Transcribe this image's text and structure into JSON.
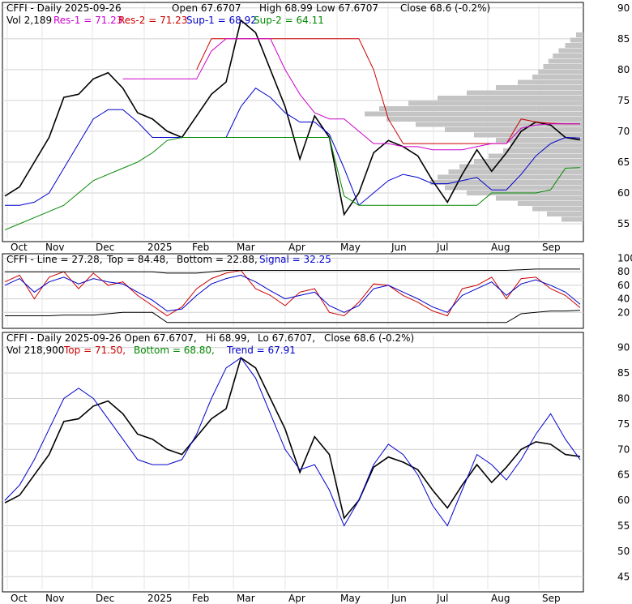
{
  "chart_data": [
    {
      "type": "line",
      "title": "CFFI - Daily 2025-09-26",
      "header": {
        "title": "CFFI - Daily 2025-09-26",
        "open": "Open 67.6707",
        "high": "High 68.99",
        "low": "Low 67.6707",
        "close": "Close 68.6 (-0.2%)",
        "vol": "Vol 2,189",
        "res1": "Res-1 = 71.23",
        "res2": "Res-2 = 71.23",
        "sup1": "Sup-1 = 68.92",
        "sup2": "Sup-2 = 64.11"
      },
      "x_ticks": [
        "Oct",
        "Nov",
        "Dec",
        "2025",
        "Feb",
        "Mar",
        "Apr",
        "May",
        "Jun",
        "Jul",
        "Aug",
        "Sep"
      ],
      "y_ticks": [
        55,
        60,
        65,
        70,
        75,
        80,
        85,
        90
      ],
      "ylim": [
        52.5,
        90.5
      ],
      "series": [
        {
          "name": "Close",
          "color": "#000000",
          "values": [
            59.5,
            61.0,
            65.0,
            69.0,
            75.5,
            76.0,
            78.5,
            79.5,
            77.0,
            73.0,
            72.0,
            70.0,
            69.0,
            72.5,
            76.0,
            78.0,
            88.0,
            86.0,
            80.0,
            74.0,
            65.5,
            72.5,
            69.0,
            56.5,
            60.0,
            66.5,
            68.5,
            67.5,
            66.0,
            62.0,
            58.5,
            63.0,
            67.0,
            63.5,
            66.5,
            70.0,
            71.5,
            71.0,
            69.0,
            68.6
          ]
        },
        {
          "name": "Res-2",
          "color": "#cc0000",
          "values": [
            null,
            null,
            null,
            null,
            null,
            null,
            null,
            null,
            null,
            null,
            null,
            null,
            null,
            80.0,
            85.0,
            85.0,
            85.0,
            85.0,
            85.0,
            85.0,
            85.0,
            85.0,
            85.0,
            85.0,
            85.0,
            80.0,
            72.0,
            68.0,
            68.0,
            68.0,
            68.0,
            68.0,
            68.0,
            68.0,
            68.0,
            72.0,
            71.5,
            71.3,
            71.2,
            71.2
          ]
        },
        {
          "name": "Res-1",
          "color": "#cc00cc",
          "values": [
            null,
            null,
            null,
            null,
            null,
            null,
            null,
            null,
            78.5,
            78.5,
            78.5,
            78.5,
            78.5,
            78.5,
            83.0,
            85.0,
            85.0,
            85.0,
            85.0,
            80.0,
            76.0,
            73.0,
            72.0,
            72.0,
            70.0,
            68.0,
            68.0,
            67.5,
            67.5,
            67.0,
            67.0,
            67.0,
            67.5,
            68.0,
            68.0,
            70.5,
            71.0,
            71.2,
            71.2,
            71.2
          ]
        },
        {
          "name": "Sup-1",
          "color": "#0000cc",
          "values": [
            58.0,
            58.0,
            58.5,
            60.0,
            64.0,
            68.0,
            72.0,
            73.5,
            73.5,
            71.5,
            69.0,
            69.0,
            69.0,
            69.0,
            69.0,
            69.0,
            74.0,
            77.0,
            75.5,
            73.0,
            71.5,
            71.5,
            69.5,
            64.0,
            58.0,
            60.0,
            62.0,
            63.0,
            62.5,
            61.5,
            61.5,
            62.0,
            62.5,
            60.5,
            60.5,
            63.0,
            66.0,
            68.0,
            69.0,
            68.9
          ]
        },
        {
          "name": "Sup-2",
          "color": "#008800",
          "values": [
            54.0,
            55.0,
            56.0,
            57.0,
            58.0,
            60.0,
            62.0,
            63.0,
            64.0,
            65.0,
            66.5,
            68.5,
            69.0,
            69.0,
            69.0,
            69.0,
            69.0,
            69.0,
            69.0,
            69.0,
            69.0,
            69.0,
            69.0,
            59.5,
            58.0,
            58.0,
            58.0,
            58.0,
            58.0,
            58.0,
            58.0,
            58.0,
            58.0,
            60.0,
            60.0,
            60.0,
            60.0,
            60.5,
            64.0,
            64.1
          ]
        }
      ]
    },
    {
      "type": "line",
      "header": {
        "title": "CFFI - Line = 27.28,",
        "top": "Top = 84.48,",
        "bottom": "Bottom = 22.88,",
        "signal": "Signal = 32.25"
      },
      "y_ticks": [
        20,
        40,
        60,
        80,
        100
      ],
      "ylim": [
        0,
        103
      ],
      "series": [
        {
          "name": "Line",
          "color": "#cc0000",
          "values": [
            65,
            75,
            40,
            72,
            80,
            55,
            78,
            60,
            65,
            45,
            30,
            15,
            28,
            55,
            70,
            78,
            82,
            55,
            45,
            30,
            50,
            55,
            20,
            15,
            35,
            62,
            60,
            45,
            35,
            22,
            15,
            55,
            60,
            72,
            40,
            70,
            72,
            55,
            45,
            27
          ]
        },
        {
          "name": "Signal",
          "color": "#0000cc",
          "values": [
            60,
            70,
            50,
            65,
            72,
            62,
            70,
            65,
            62,
            50,
            38,
            22,
            25,
            45,
            62,
            70,
            75,
            65,
            52,
            40,
            45,
            50,
            30,
            20,
            30,
            55,
            60,
            50,
            40,
            28,
            20,
            45,
            55,
            65,
            45,
            62,
            68,
            60,
            50,
            32
          ]
        },
        {
          "name": "Top",
          "color": "#000000",
          "values": [
            80,
            80,
            80,
            80,
            80,
            80,
            80,
            80,
            80,
            80,
            80,
            78,
            78,
            78,
            80,
            82,
            82,
            82,
            82,
            82,
            82,
            82,
            82,
            82,
            82,
            82,
            82,
            82,
            82,
            82,
            82,
            82,
            82,
            82,
            82,
            83,
            84,
            84,
            84,
            84
          ]
        },
        {
          "name": "Bottom",
          "color": "#000000",
          "values": [
            15,
            15,
            15,
            15,
            16,
            16,
            16,
            18,
            20,
            20,
            20,
            5,
            5,
            5,
            5,
            5,
            5,
            5,
            5,
            5,
            5,
            5,
            5,
            5,
            5,
            5,
            5,
            5,
            5,
            5,
            5,
            5,
            5,
            5,
            5,
            18,
            20,
            22,
            22,
            23
          ]
        }
      ]
    },
    {
      "type": "line",
      "header": {
        "title": "CFFI - Daily 2025-09-26 Open 67.6707,",
        "hilo": "Hi 68.99,",
        "lo": "Lo 67.6707,",
        "close": "Close 68.6 (-0.2%)",
        "vol": "Vol 218,900",
        "top": "Top = 71.50,",
        "bottom": "Bottom = 68.80,",
        "trend": "Trend = 67.91"
      },
      "y_ticks": [
        45,
        50,
        55,
        60,
        65,
        70,
        75,
        80,
        85,
        90
      ],
      "ylim": [
        42.5,
        92.5
      ],
      "series": [
        {
          "name": "Close",
          "color": "#000000",
          "values": [
            59.5,
            61.0,
            65.0,
            69.0,
            75.5,
            76.0,
            78.5,
            79.5,
            77.0,
            73.0,
            72.0,
            70.0,
            69.0,
            72.5,
            76.0,
            78.0,
            88.0,
            86.0,
            80.0,
            74.0,
            65.5,
            72.5,
            69.0,
            56.5,
            60.0,
            66.5,
            68.5,
            67.5,
            66.0,
            62.0,
            58.5,
            63.0,
            67.0,
            63.5,
            66.5,
            70.0,
            71.5,
            71.0,
            69.0,
            68.6
          ]
        },
        {
          "name": "Trend",
          "color": "#0000cc",
          "values": [
            60,
            63,
            68,
            74,
            80,
            82,
            80,
            76,
            72,
            68,
            67,
            67,
            68,
            73,
            80,
            86,
            88,
            84,
            77,
            70,
            66,
            67,
            62,
            55,
            60,
            67,
            71,
            69,
            65,
            59,
            55,
            62,
            69,
            67,
            64,
            68,
            73,
            77,
            72,
            68
          ]
        }
      ]
    }
  ]
}
